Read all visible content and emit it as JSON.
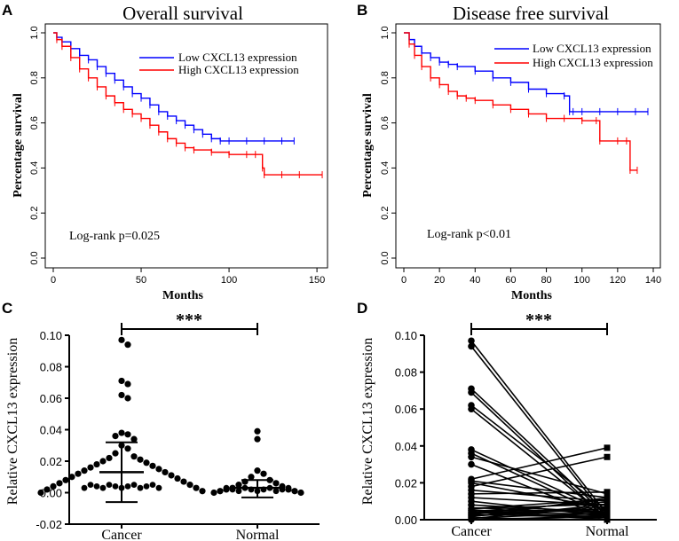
{
  "chart_data": [
    {
      "panel": "A",
      "type": "line",
      "title": "Overall survival",
      "xlabel": "Months",
      "ylabel": "Percentage survival",
      "xlim": [
        0,
        155
      ],
      "ylim": [
        0,
        1.0
      ],
      "xticks": [
        0,
        50,
        100,
        150
      ],
      "yticks": [
        0.0,
        0.2,
        0.4,
        0.6,
        0.8,
        1.0
      ],
      "annotation": "Log-rank p=0.025",
      "legend_position": "top-right",
      "series": [
        {
          "name": "Low CXCL13 expression",
          "color": "#0000ff",
          "x": [
            0,
            2,
            5,
            10,
            15,
            20,
            25,
            30,
            35,
            40,
            45,
            50,
            55,
            60,
            65,
            70,
            75,
            80,
            85,
            90,
            95,
            100,
            110,
            120,
            130,
            137
          ],
          "y": [
            1.0,
            0.98,
            0.96,
            0.93,
            0.9,
            0.88,
            0.85,
            0.82,
            0.79,
            0.76,
            0.73,
            0.71,
            0.68,
            0.65,
            0.63,
            0.61,
            0.59,
            0.57,
            0.55,
            0.53,
            0.52,
            0.52,
            0.52,
            0.52,
            0.52,
            0.52
          ]
        },
        {
          "name": "High CXCL13 expression",
          "color": "#ff0000",
          "x": [
            0,
            2,
            5,
            10,
            15,
            20,
            25,
            30,
            35,
            40,
            45,
            50,
            55,
            60,
            65,
            70,
            75,
            80,
            90,
            100,
            110,
            115,
            119,
            120,
            130,
            140,
            153
          ],
          "y": [
            1.0,
            0.97,
            0.94,
            0.89,
            0.84,
            0.8,
            0.76,
            0.72,
            0.69,
            0.66,
            0.64,
            0.62,
            0.59,
            0.56,
            0.53,
            0.51,
            0.49,
            0.48,
            0.47,
            0.46,
            0.46,
            0.46,
            0.4,
            0.37,
            0.37,
            0.37,
            0.37
          ]
        }
      ]
    },
    {
      "panel": "B",
      "type": "line",
      "title": "Disease free survival",
      "xlabel": "Months",
      "ylabel": "Percentage survival",
      "xlim": [
        0,
        140
      ],
      "ylim": [
        0,
        1.0
      ],
      "xticks": [
        0,
        20,
        40,
        60,
        80,
        100,
        120,
        140
      ],
      "yticks": [
        0.0,
        0.2,
        0.4,
        0.6,
        0.8,
        1.0
      ],
      "annotation": "Log-rank p<0.01",
      "legend_position": "top-right",
      "series": [
        {
          "name": "Low CXCL13 expression",
          "color": "#0000ff",
          "x": [
            0,
            3,
            6,
            10,
            15,
            20,
            25,
            30,
            40,
            50,
            60,
            70,
            80,
            90,
            93,
            95,
            100,
            110,
            120,
            130,
            137
          ],
          "y": [
            1.0,
            0.97,
            0.94,
            0.91,
            0.89,
            0.87,
            0.86,
            0.85,
            0.83,
            0.8,
            0.78,
            0.75,
            0.73,
            0.72,
            0.65,
            0.65,
            0.65,
            0.65,
            0.65,
            0.65,
            0.65
          ]
        },
        {
          "name": "High CXCL13 expression",
          "color": "#ff0000",
          "x": [
            0,
            3,
            6,
            10,
            15,
            20,
            25,
            30,
            35,
            40,
            50,
            60,
            70,
            80,
            90,
            100,
            108,
            110,
            120,
            125,
            127,
            131
          ],
          "y": [
            1.0,
            0.95,
            0.9,
            0.85,
            0.8,
            0.77,
            0.74,
            0.72,
            0.71,
            0.7,
            0.68,
            0.66,
            0.64,
            0.62,
            0.62,
            0.61,
            0.61,
            0.52,
            0.52,
            0.52,
            0.39,
            0.39
          ]
        }
      ]
    },
    {
      "panel": "C",
      "type": "scatter",
      "xlabel": "",
      "ylabel": "Relative CXCL13 expression",
      "categories": [
        "Cancer",
        "Normal"
      ],
      "ylim": [
        -0.02,
        0.1
      ],
      "yticks": [
        -0.02,
        0.0,
        0.02,
        0.04,
        0.06,
        0.08,
        0.1
      ],
      "significance": "***",
      "series": [
        {
          "name": "Cancer",
          "mean": 0.013,
          "sd_low": -0.006,
          "sd_high": 0.032,
          "values": [
            0.097,
            0.094,
            0.071,
            0.069,
            0.062,
            0.06,
            0.038,
            0.037,
            0.036,
            0.034,
            0.03,
            0.028,
            0.025,
            0.023,
            0.022,
            0.021,
            0.02,
            0.019,
            0.018,
            0.017,
            0.016,
            0.015,
            0.014,
            0.013,
            0.012,
            0.011,
            0.01,
            0.009,
            0.008,
            0.007,
            0.006,
            0.005,
            0.004,
            0.003,
            0.002,
            0.001,
            0.0
          ]
        },
        {
          "name": "Normal",
          "mean": 0.003,
          "sd_low": -0.003,
          "sd_high": 0.008,
          "values": [
            0.039,
            0.034,
            0.014,
            0.012,
            0.01,
            0.008,
            0.007,
            0.006,
            0.005,
            0.004,
            0.003,
            0.002,
            0.002,
            0.001,
            0.001,
            0.0,
            0.0
          ]
        }
      ]
    },
    {
      "panel": "D",
      "type": "line",
      "xlabel": "",
      "ylabel": "Relative CXCL13 expression",
      "categories": [
        "Cancer",
        "Normal"
      ],
      "ylim": [
        0.0,
        0.1
      ],
      "yticks": [
        0.0,
        0.02,
        0.04,
        0.06,
        0.08,
        0.1
      ],
      "significance": "***",
      "pairs": [
        [
          0.097,
          0.003
        ],
        [
          0.094,
          0.001
        ],
        [
          0.071,
          0.002
        ],
        [
          0.069,
          0.0
        ],
        [
          0.062,
          0.005
        ],
        [
          0.06,
          0.001
        ],
        [
          0.038,
          0.004
        ],
        [
          0.036,
          0.002
        ],
        [
          0.034,
          0.014
        ],
        [
          0.03,
          0.001
        ],
        [
          0.022,
          0.039
        ],
        [
          0.021,
          0.012
        ],
        [
          0.02,
          0.006
        ],
        [
          0.018,
          0.034
        ],
        [
          0.016,
          0.01
        ],
        [
          0.014,
          0.015
        ],
        [
          0.012,
          0.008
        ],
        [
          0.01,
          0.002
        ],
        [
          0.008,
          0.004
        ],
        [
          0.006,
          0.011
        ],
        [
          0.005,
          0.0
        ],
        [
          0.004,
          0.003
        ],
        [
          0.003,
          0.001
        ],
        [
          0.002,
          0.006
        ],
        [
          0.001,
          0.0
        ],
        [
          0.0,
          0.002
        ]
      ]
    }
  ]
}
